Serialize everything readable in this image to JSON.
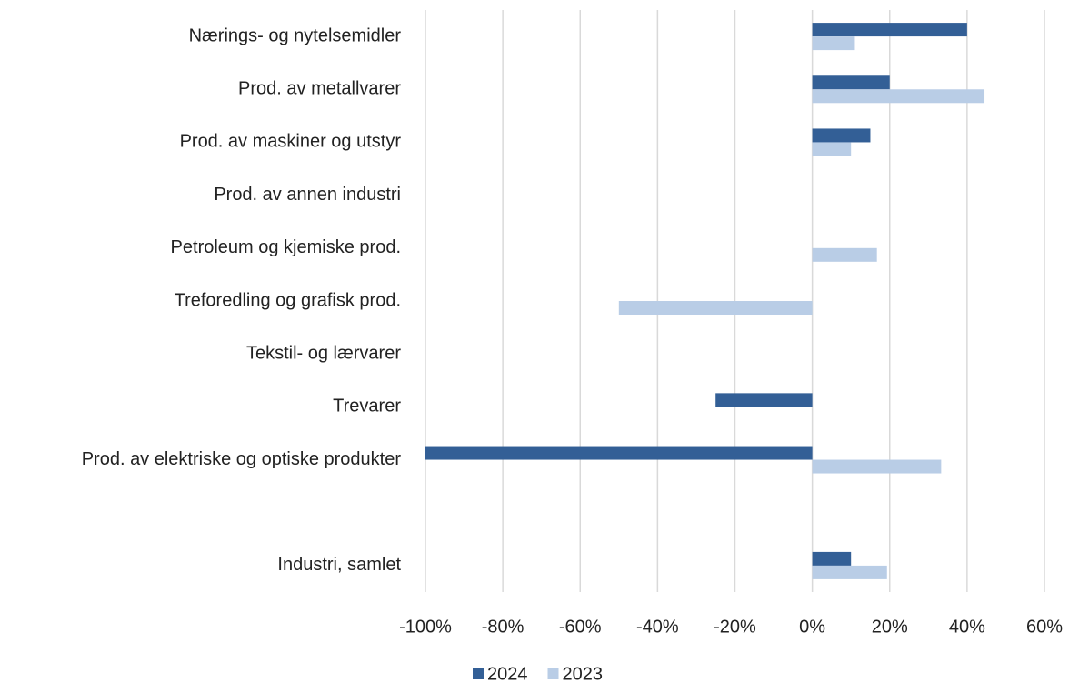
{
  "chart_data": {
    "type": "hbar",
    "categories": [
      "Nærings- og nytelsemidler",
      "Prod. av metallvarer",
      "Prod. av maskiner og utstyr",
      "Prod. av annen industri",
      "Petroleum og kjemiske prod.",
      "Treforedling og grafisk prod.",
      "Tekstil- og lærvarer",
      "Trevarer",
      "Prod. av elektriske og optiske produkter",
      null,
      "Industri, samlet"
    ],
    "series": [
      {
        "name": "2024",
        "color": "#335f96",
        "values": [
          40,
          20,
          15,
          0,
          0,
          0,
          0,
          -25,
          -100,
          null,
          10
        ]
      },
      {
        "name": "2023",
        "color": "#b9cde6",
        "values": [
          11,
          44.5,
          10,
          0,
          16.7,
          -50,
          0,
          0,
          33.3,
          null,
          19.3
        ]
      }
    ],
    "xlim": [
      -100,
      60
    ],
    "xticks": [
      {
        "value": -100,
        "label": "-100%"
      },
      {
        "value": -80,
        "label": "-80%"
      },
      {
        "value": -60,
        "label": "-60%"
      },
      {
        "value": -40,
        "label": "-40%"
      },
      {
        "value": -20,
        "label": "-20%"
      },
      {
        "value": 0,
        "label": "0%"
      },
      {
        "value": 20,
        "label": "20%"
      },
      {
        "value": 40,
        "label": "40%"
      },
      {
        "value": 60,
        "label": "60%"
      }
    ],
    "grid": true,
    "legend": "bottom"
  }
}
